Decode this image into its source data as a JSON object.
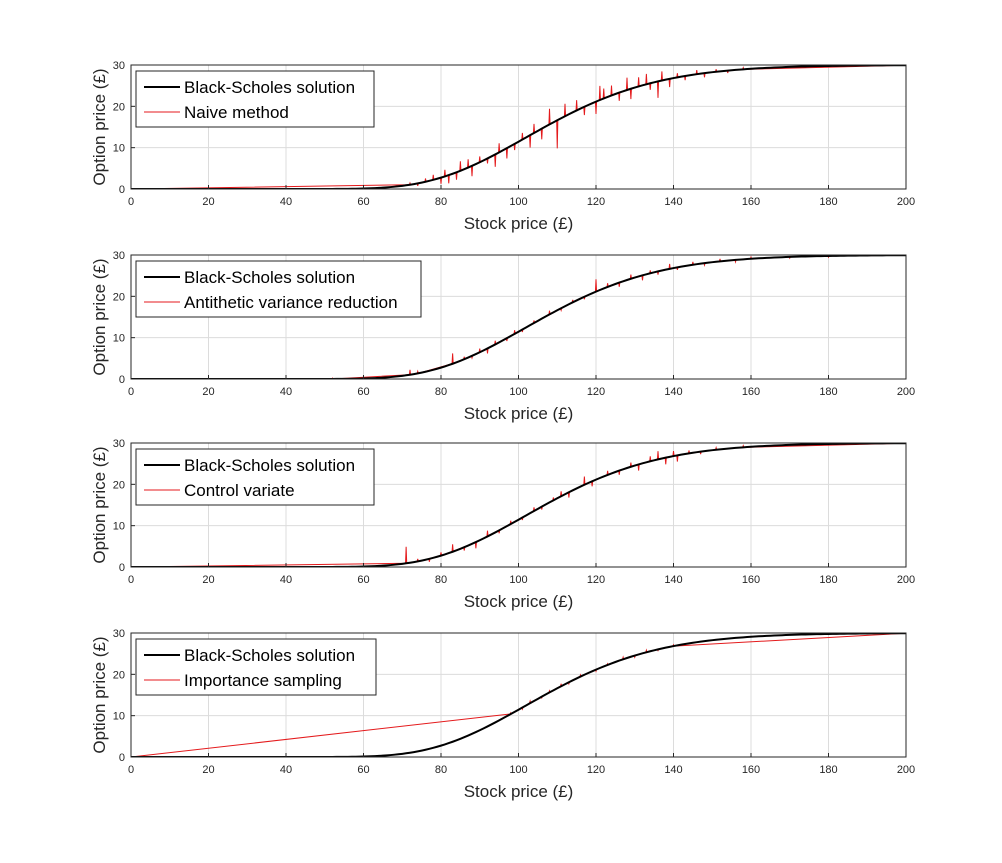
{
  "colors": {
    "exact_line": "#000000",
    "estimate_line": "#e41a1c",
    "grid": "#dcdcdc",
    "axes": "#262626"
  },
  "chart_data": [
    {
      "type": "line",
      "xlabel": "Stock price (£)",
      "ylabel": "Option price (£)",
      "xlim": [
        0,
        200
      ],
      "ylim": [
        0,
        30
      ],
      "xticks": [
        0,
        20,
        40,
        60,
        80,
        100,
        120,
        140,
        160,
        180,
        200
      ],
      "yticks": [
        0,
        10,
        20,
        30
      ],
      "grid": true,
      "legend_position": "top-left",
      "series": [
        {
          "name": "Black-Scholes solution",
          "role": "exact"
        },
        {
          "name": "Naive method",
          "role": "estimate",
          "deviations": [
            [
              72,
              0.4
            ],
            [
              74,
              -0.6
            ],
            [
              76,
              0.8
            ],
            [
              78,
              1.2
            ],
            [
              80,
              -1.5
            ],
            [
              81,
              1.6
            ],
            [
              82,
              -2.0
            ],
            [
              84,
              -1.8
            ],
            [
              85,
              2.3
            ],
            [
              87,
              2.0
            ],
            [
              88,
              -2.5
            ],
            [
              90,
              1.4
            ],
            [
              92,
              -1.2
            ],
            [
              94,
              -3.0
            ],
            [
              95,
              2.2
            ],
            [
              97,
              -2.5
            ],
            [
              99,
              -1.5
            ],
            [
              101,
              1.6
            ],
            [
              103,
              -3.0
            ],
            [
              104,
              2.2
            ],
            [
              106,
              -2.6
            ],
            [
              108,
              3.8
            ],
            [
              110,
              -6.8
            ],
            [
              112,
              3.0
            ],
            [
              115,
              2.5
            ],
            [
              117,
              -2.0
            ],
            [
              120,
              -3.0
            ],
            [
              121,
              3.4
            ],
            [
              122,
              2.4
            ],
            [
              124,
              2.4
            ],
            [
              126,
              -2.0
            ],
            [
              128,
              3.0
            ],
            [
              129,
              -2.5
            ],
            [
              131,
              2.2
            ],
            [
              133,
              2.5
            ],
            [
              134,
              -1.6
            ],
            [
              136,
              -4.0
            ],
            [
              137,
              2.2
            ],
            [
              139,
              -2.0
            ],
            [
              141,
              1.0
            ],
            [
              143,
              -1.0
            ],
            [
              146,
              1.0
            ],
            [
              148,
              -1.0
            ],
            [
              151,
              0.6
            ],
            [
              154,
              -0.6
            ],
            [
              158,
              0.4
            ]
          ]
        },
        {
          "name": "Antithetic variance reduction",
          "role": "estimate",
          "deviations": [
            [
              52,
              0.2
            ],
            [
              72,
              1.2
            ],
            [
              74,
              0.5
            ],
            [
              83,
              2.5
            ],
            [
              86,
              0.6
            ],
            [
              88,
              -0.5
            ],
            [
              90,
              0.9
            ],
            [
              92,
              -1.2
            ],
            [
              94,
              0.9
            ],
            [
              97,
              -0.7
            ],
            [
              99,
              0.9
            ],
            [
              101,
              -0.6
            ],
            [
              104,
              0.6
            ],
            [
              108,
              0.9
            ],
            [
              111,
              -0.5
            ],
            [
              114,
              0.6
            ],
            [
              117,
              -0.6
            ],
            [
              120,
              3.0
            ],
            [
              123,
              0.9
            ],
            [
              126,
              -1.0
            ],
            [
              129,
              1.0
            ],
            [
              132,
              -1.2
            ],
            [
              134,
              0.7
            ],
            [
              136,
              -0.8
            ],
            [
              139,
              1.2
            ],
            [
              141,
              -0.6
            ],
            [
              145,
              0.7
            ],
            [
              148,
              -0.5
            ],
            [
              152,
              0.6
            ],
            [
              156,
              -0.5
            ],
            [
              160,
              0.4
            ],
            [
              170,
              -0.3
            ],
            [
              180,
              -0.3
            ]
          ]
        },
        {
          "name": "Control variate",
          "role": "estimate",
          "deviations": [
            [
              71,
              4.0
            ],
            [
              74,
              0.6
            ],
            [
              77,
              -0.7
            ],
            [
              80,
              0.8
            ],
            [
              83,
              1.8
            ],
            [
              86,
              -0.8
            ],
            [
              89,
              -1.5
            ],
            [
              92,
              1.4
            ],
            [
              95,
              -0.7
            ],
            [
              98,
              0.8
            ],
            [
              101,
              -0.6
            ],
            [
              104,
              0.9
            ],
            [
              106,
              -0.7
            ],
            [
              109,
              0.7
            ],
            [
              111,
              1.2
            ],
            [
              113,
              -1.3
            ],
            [
              117,
              2.0
            ],
            [
              119,
              -1.2
            ],
            [
              123,
              1.0
            ],
            [
              126,
              -1.0
            ],
            [
              129,
              1.0
            ],
            [
              131,
              -1.5
            ],
            [
              134,
              1.2
            ],
            [
              136,
              2.0
            ],
            [
              138,
              -1.6
            ],
            [
              140,
              1.2
            ],
            [
              141,
              -1.5
            ],
            [
              144,
              0.7
            ],
            [
              147,
              -0.6
            ],
            [
              151,
              0.5
            ],
            [
              158,
              0.4
            ]
          ]
        },
        {
          "name": "Importance sampling",
          "role": "estimate",
          "deviations": [
            [
              98,
              0.3
            ],
            [
              101,
              -0.4
            ],
            [
              103,
              0.5
            ],
            [
              106,
              -0.3
            ],
            [
              108,
              0.4
            ],
            [
              111,
              0.6
            ],
            [
              113,
              -0.4
            ],
            [
              116,
              0.4
            ],
            [
              120,
              -0.4
            ],
            [
              123,
              0.3
            ],
            [
              127,
              0.5
            ],
            [
              130,
              -0.4
            ],
            [
              133,
              0.5
            ],
            [
              136,
              -0.3
            ],
            [
              140,
              0.3
            ]
          ]
        }
      ]
    },
    {
      "placeholder": true
    }
  ]
}
